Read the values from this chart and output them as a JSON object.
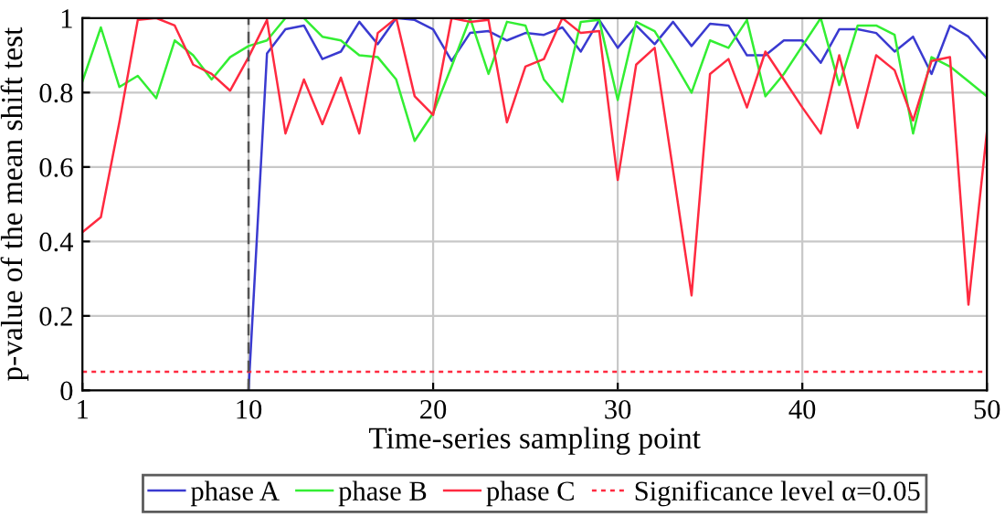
{
  "chart_data": {
    "type": "line",
    "xlabel": "Time-series sampling point",
    "ylabel": "p-value of the mean shift test",
    "x": [
      1,
      2,
      3,
      4,
      5,
      6,
      7,
      8,
      9,
      10,
      11,
      12,
      13,
      14,
      15,
      16,
      17,
      18,
      19,
      20,
      21,
      22,
      23,
      24,
      25,
      26,
      27,
      28,
      29,
      30,
      31,
      32,
      33,
      34,
      35,
      36,
      37,
      38,
      39,
      40,
      41,
      42,
      43,
      44,
      45,
      46,
      47,
      48,
      49,
      50
    ],
    "xlim": [
      1,
      50
    ],
    "xticks": [
      1,
      10,
      20,
      30,
      40,
      50
    ],
    "ylim": [
      0,
      1
    ],
    "yticks": [
      0,
      0.2,
      0.4,
      0.6,
      0.8,
      1
    ],
    "grid": true,
    "legend": "bottom",
    "marker": "none",
    "line_style": "solid",
    "series": [
      {
        "name": "phase A",
        "color": "#3a3ad0",
        "values": [
          null,
          null,
          null,
          null,
          null,
          null,
          null,
          null,
          null,
          0,
          0.905,
          0.97,
          0.98,
          0.89,
          0.91,
          0.99,
          0.93,
          1.0,
          0.995,
          0.97,
          0.885,
          0.96,
          0.965,
          0.94,
          0.96,
          0.955,
          0.975,
          0.91,
          0.995,
          0.92,
          0.98,
          0.93,
          0.99,
          0.925,
          0.985,
          0.98,
          0.9,
          0.9,
          0.94,
          0.94,
          0.88,
          0.97,
          0.97,
          0.96,
          0.91,
          0.95,
          0.85,
          0.98,
          0.95,
          0.89
        ]
      },
      {
        "name": "phase B",
        "color": "#33ee33",
        "values": [
          0.83,
          0.975,
          0.815,
          0.845,
          0.785,
          0.94,
          0.9,
          0.835,
          0.895,
          0.925,
          0.94,
          1.0,
          1.0,
          0.95,
          0.94,
          0.9,
          0.895,
          0.835,
          0.67,
          0.745,
          0.87,
          1.0,
          0.85,
          0.99,
          0.98,
          0.835,
          0.775,
          0.99,
          0.995,
          0.78,
          0.99,
          0.965,
          0.885,
          0.8,
          0.94,
          0.92,
          0.995,
          0.79,
          0.85,
          0.925,
          1.0,
          0.82,
          0.98,
          0.98,
          0.955,
          0.69,
          0.895,
          0.87,
          0.83,
          0.79
        ]
      },
      {
        "name": "phase C",
        "color": "#ff2a40",
        "values": [
          0.425,
          0.465,
          0.72,
          0.995,
          1.0,
          0.98,
          0.875,
          0.85,
          0.805,
          0.895,
          0.995,
          0.69,
          0.835,
          0.715,
          0.84,
          0.69,
          0.96,
          1.0,
          0.79,
          0.74,
          1.0,
          0.99,
          0.995,
          0.72,
          0.87,
          0.89,
          1.0,
          0.96,
          0.965,
          0.565,
          0.875,
          0.92,
          0.59,
          0.255,
          0.85,
          0.89,
          0.76,
          0.91,
          0.835,
          0.76,
          0.69,
          0.9,
          0.705,
          0.9,
          0.86,
          0.725,
          0.885,
          0.895,
          0.23,
          0.695
        ]
      }
    ],
    "ref_lines": [
      {
        "axis": "y",
        "value": 0.05,
        "label": "Significance level α=0.05",
        "color": "#ff2a40",
        "line_style": "dotted"
      },
      {
        "axis": "x",
        "value": 10,
        "color": "#555555",
        "line_style": "dashed"
      }
    ]
  }
}
